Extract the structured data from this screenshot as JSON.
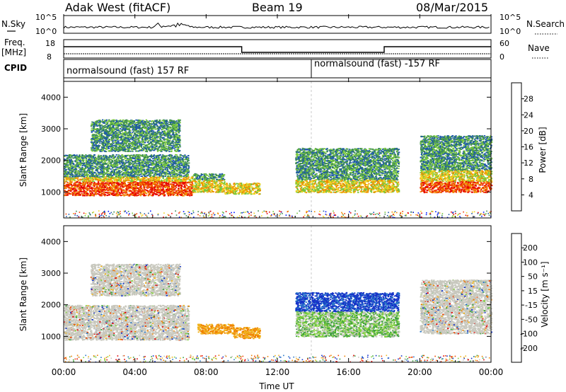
{
  "header": {
    "station": "Adak West (fitACF)",
    "beam": "Beam 19",
    "date": "08/Mar/2015"
  },
  "top_panels": {
    "nsky_label": "N.Sky",
    "nsearch_label": "N.Search",
    "nsky_ticks": [
      "10^5",
      "10^0"
    ],
    "nsearch_ticks": [
      "10^5",
      "10^0"
    ],
    "freq_label_1": "Freq.",
    "freq_label_2": "[MHz]",
    "freq_ticks": [
      "18",
      "8"
    ],
    "nave_label": "Nave",
    "nave_ticks": [
      "60",
      "0"
    ],
    "cpid_label": "CPID",
    "cpid_segments": [
      {
        "text": "normalsound (fast) 157 RF",
        "start_hour": 0
      },
      {
        "text": "normalsound (fast) -157 RF",
        "start_hour": 14
      }
    ]
  },
  "chart_data": [
    {
      "type": "heatmap",
      "parameter": "Power",
      "ylabel": "Slant Range [km]",
      "xlim_hours": [
        0,
        24
      ],
      "ylim": [
        180,
        4500
      ],
      "yticks": [
        "1000",
        "2000",
        "3000",
        "4000"
      ],
      "colorbar_label": "Power [dB]",
      "colorbar_ticks": [
        "4",
        "8",
        "12",
        "16",
        "20",
        "24",
        "28"
      ],
      "colors": [
        "#0014ff",
        "#1e5aaa",
        "#3c8c50",
        "#78c83c",
        "#f0d21e",
        "#f08c00",
        "#f03c00",
        "#e60000"
      ],
      "scatter_regions": [
        {
          "t": [
            0.0,
            7.2
          ],
          "r": [
            900,
            1500
          ],
          "level": "high"
        },
        {
          "t": [
            0.0,
            7.0
          ],
          "r": [
            1500,
            2200
          ],
          "level": "mid"
        },
        {
          "t": [
            1.5,
            6.5
          ],
          "r": [
            2300,
            3300
          ],
          "level": "mid"
        },
        {
          "t": [
            7.2,
            9.0
          ],
          "r": [
            1000,
            1600
          ],
          "level": "mid"
        },
        {
          "t": [
            9.0,
            11.0
          ],
          "r": [
            950,
            1300
          ],
          "level": "mid"
        },
        {
          "t": [
            13.0,
            18.8
          ],
          "r": [
            1000,
            2400
          ],
          "level": "mid"
        },
        {
          "t": [
            20.0,
            24.0
          ],
          "r": [
            1000,
            2800
          ],
          "level": "high"
        }
      ]
    },
    {
      "type": "heatmap",
      "parameter": "Velocity",
      "ylabel": "Slant Range [km]",
      "xlabel": "Time UT",
      "xlim_hours": [
        0,
        24
      ],
      "xticks": [
        "00:00",
        "04:00",
        "08:00",
        "12:00",
        "16:00",
        "20:00",
        "00:00"
      ],
      "ylim": [
        180,
        4500
      ],
      "yticks": [
        "1000",
        "2000",
        "3000",
        "4000"
      ],
      "colorbar_label": "Velocity [m s⁻¹]",
      "colorbar_ticks": [
        "200",
        "100",
        "50",
        "15",
        "-15",
        "-50",
        "-100",
        "-200"
      ],
      "colors": [
        "#1432c8",
        "#2878c8",
        "#3ca03c",
        "#82d23c",
        "#c8c8be",
        "#f0b41e",
        "#f08200",
        "#f04600",
        "#e10000"
      ],
      "scatter_regions": [
        {
          "t": [
            0.0,
            7.0
          ],
          "r": [
            900,
            2000
          ],
          "level": "ground"
        },
        {
          "t": [
            1.5,
            6.5
          ],
          "r": [
            2300,
            3300
          ],
          "level": "ground"
        },
        {
          "t": [
            7.5,
            9.5
          ],
          "r": [
            1100,
            1400
          ],
          "level": "away"
        },
        {
          "t": [
            9.5,
            11.0
          ],
          "r": [
            950,
            1300
          ],
          "level": "away"
        },
        {
          "t": [
            13.0,
            18.8
          ],
          "r": [
            1000,
            2400
          ],
          "level": "toward"
        },
        {
          "t": [
            20.0,
            24.0
          ],
          "r": [
            1100,
            2800
          ],
          "level": "ground"
        }
      ]
    }
  ]
}
